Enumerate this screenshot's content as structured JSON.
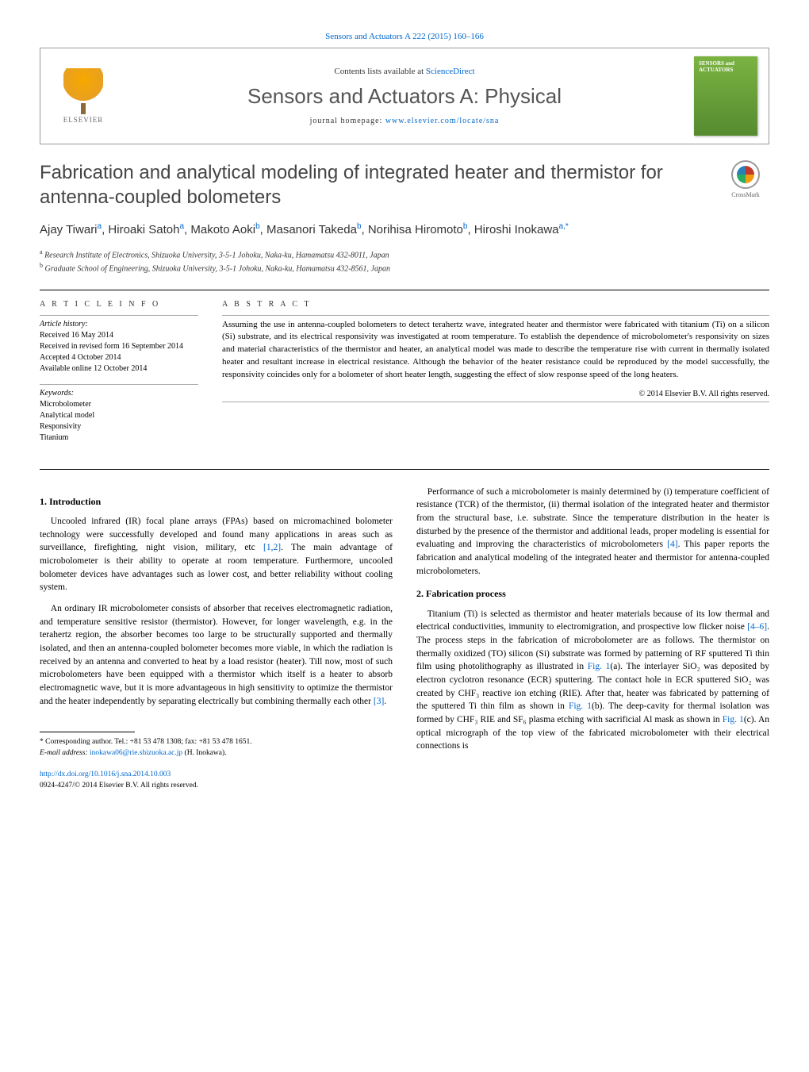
{
  "header": {
    "citation": "Sensors and Actuators A 222 (2015) 160–166",
    "contents_prefix": "Contents lists available at ",
    "contents_link": "ScienceDirect",
    "journal_name": "Sensors and Actuators A: Physical",
    "homepage_prefix": "journal homepage: ",
    "homepage_url": "www.elsevier.com/locate/sna",
    "publisher": "ELSEVIER",
    "cover_label": "SENSORS and ACTUATORS"
  },
  "crossmark": {
    "label": "CrossMark"
  },
  "article": {
    "title": "Fabrication and analytical modeling of integrated heater and thermistor for antenna-coupled bolometers",
    "authors_html": "Ajay Tiwari<sup>a</sup>, Hiroaki Satoh<sup>a</sup>, Makoto Aoki<sup>b</sup>, Masanori Takeda<sup>b</sup>, Norihisa Hiromoto<sup>b</sup>, Hiroshi Inokawa<sup>a,*</sup>",
    "affiliations": [
      {
        "key": "a",
        "text": "Research Institute of Electronics, Shizuoka University, 3-5-1 Johoku, Naka-ku, Hamamatsu 432-8011, Japan"
      },
      {
        "key": "b",
        "text": "Graduate School of Engineering, Shizuoka University, 3-5-1 Johoku, Naka-ku, Hamamatsu 432-8561, Japan"
      }
    ]
  },
  "info": {
    "heading": "A R T I C L E   I N F O",
    "history_label": "Article history:",
    "received": "Received 16 May 2014",
    "revised": "Received in revised form 16 September 2014",
    "accepted": "Accepted 4 October 2014",
    "online": "Available online 12 October 2014",
    "keywords_label": "Keywords:",
    "keywords": [
      "Microbolometer",
      "Analytical model",
      "Responsivity",
      "Titanium"
    ]
  },
  "abstract": {
    "heading": "A B S T R A C T",
    "text": "Assuming the use in antenna-coupled bolometers to detect terahertz wave, integrated heater and thermistor were fabricated with titanium (Ti) on a silicon (Si) substrate, and its electrical responsivity was investigated at room temperature. To establish the dependence of microbolometer's responsivity on sizes and material characteristics of the thermistor and heater, an analytical model was made to describe the temperature rise with current in thermally isolated heater and resultant increase in electrical resistance. Although the behavior of the heater resistance could be reproduced by the model successfully, the responsivity coincides only for a bolometer of short heater length, suggesting the effect of slow response speed of the long heaters.",
    "copyright": "© 2014 Elsevier B.V. All rights reserved."
  },
  "body": {
    "intro_heading": "1. Introduction",
    "intro_p1": "Uncooled infrared (IR) focal plane arrays (FPAs) based on micromachined bolometer technology were successfully developed and found many applications in areas such as surveillance, firefighting, night vision, military, etc ",
    "intro_p1_ref": "[1,2]",
    "intro_p1_tail": ". The main advantage of microbolometer is their ability to operate at room temperature. Furthermore, uncooled bolometer devices have advantages such as lower cost, and better reliability without cooling system.",
    "intro_p2": "An ordinary IR microbolometer consists of absorber that receives electromagnetic radiation, and temperature sensitive resistor (thermistor). However, for longer wavelength, e.g. in the terahertz region, the absorber becomes too large to be structurally supported and thermally isolated, and then an antenna-coupled bolometer becomes more viable, in which the radiation is received by an antenna and converted to heat by a load resistor (heater). Till now, most of such microbolometers have been equipped with a thermistor which itself is a heater to absorb electromagnetic wave, but it is more advantageous in high sensitivity to optimize the thermistor and the heater independently by separating electrically but combining thermally each other ",
    "intro_p2_ref": "[3]",
    "intro_p2_tail": ".",
    "perf_p": "Performance of such a microbolometer is mainly determined by (i) temperature coefficient of resistance (TCR) of the thermistor, (ii) thermal isolation of the integrated heater and thermistor from the structural base, i.e. substrate. Since the temperature distribution in the heater is disturbed by the presence of the thermistor and additional leads, proper modeling is essential for evaluating and improving the characteristics of microbolometers ",
    "perf_p_ref": "[4]",
    "perf_p_tail": ". This paper reports the fabrication and analytical modeling of the integrated heater and thermistor for antenna-coupled microbolometers.",
    "fab_heading": "2. Fabrication process",
    "fab_p_a": "Titanium (Ti) is selected as thermistor and heater materials because of its low thermal and electrical conductivities, immunity to electromigration, and prospective low flicker noise ",
    "fab_p_ref1": "[4–6]",
    "fab_p_b": ". The process steps in the fabrication of microbolometer are as follows. The thermistor on thermally oxidized (TO) silicon (Si) substrate was formed by patterning of RF sputtered Ti thin film using photolithography as illustrated in ",
    "fab_p_fig1a": "Fig. 1",
    "fab_p_c": "(a). The interlayer SiO₂ was deposited by electron cyclotron resonance (ECR) sputtering. The contact hole in ECR sputtered SiO₂ was created by CHF₃ reactive ion etching (RIE). After that, heater was fabricated by patterning of the sputtered Ti thin film as shown in ",
    "fab_p_fig1b": "Fig. 1",
    "fab_p_d": "(b). The deep-cavity for thermal isolation was formed by CHF₃ RIE and SF₆ plasma etching with sacrificial Al mask as shown in ",
    "fab_p_fig1c": "Fig. 1",
    "fab_p_e": "(c). An optical micrograph of the top view of the fabricated microbolometer with their electrical connections is"
  },
  "footnote": {
    "corr": "* Corresponding author. Tel.: +81 53 478 1308; fax: +81 53 478 1651.",
    "email_label": "E-mail address: ",
    "email": "inokawa06@rie.shizuoka.ac.jp",
    "email_tail": " (H. Inokawa)."
  },
  "doi": {
    "url": "http://dx.doi.org/10.1016/j.sna.2014.10.003",
    "issn_line": "0924-4247/© 2014 Elsevier B.V. All rights reserved."
  },
  "colors": {
    "link": "#0066cc",
    "cover_top": "#7bb342",
    "cover_bottom": "#558b2f"
  }
}
